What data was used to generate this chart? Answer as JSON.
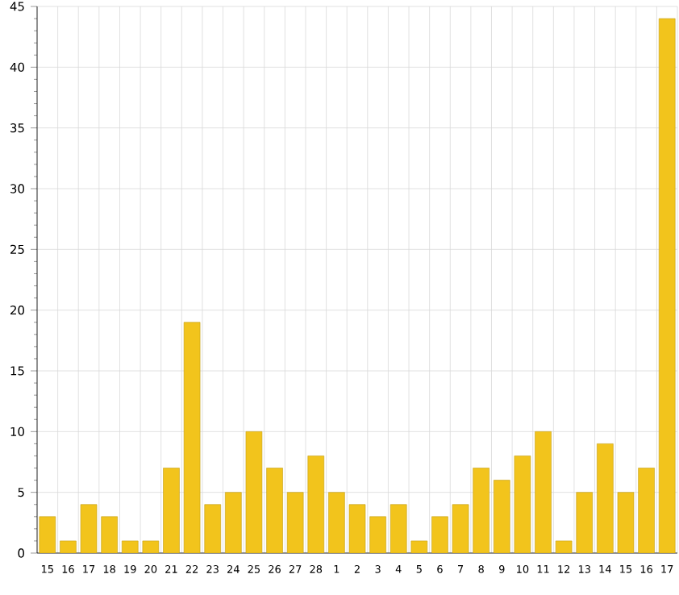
{
  "chart_data": {
    "type": "bar",
    "categories": [
      "15",
      "16",
      "17",
      "18",
      "19",
      "20",
      "21",
      "22",
      "23",
      "24",
      "25",
      "26",
      "27",
      "28",
      "1",
      "2",
      "3",
      "4",
      "5",
      "6",
      "7",
      "8",
      "9",
      "10",
      "11",
      "12",
      "13",
      "14",
      "15",
      "16",
      "17"
    ],
    "values": [
      3,
      1,
      4,
      3,
      1,
      1,
      7,
      19,
      4,
      5,
      10,
      7,
      5,
      8,
      5,
      4,
      3,
      4,
      1,
      3,
      4,
      7,
      6,
      8,
      10,
      1,
      5,
      9,
      5,
      7,
      44
    ],
    "color": "#f2c41c",
    "ylim": [
      0,
      45
    ],
    "yticks": [
      0,
      5,
      10,
      15,
      20,
      25,
      30,
      35,
      40,
      45
    ],
    "grid": true
  }
}
